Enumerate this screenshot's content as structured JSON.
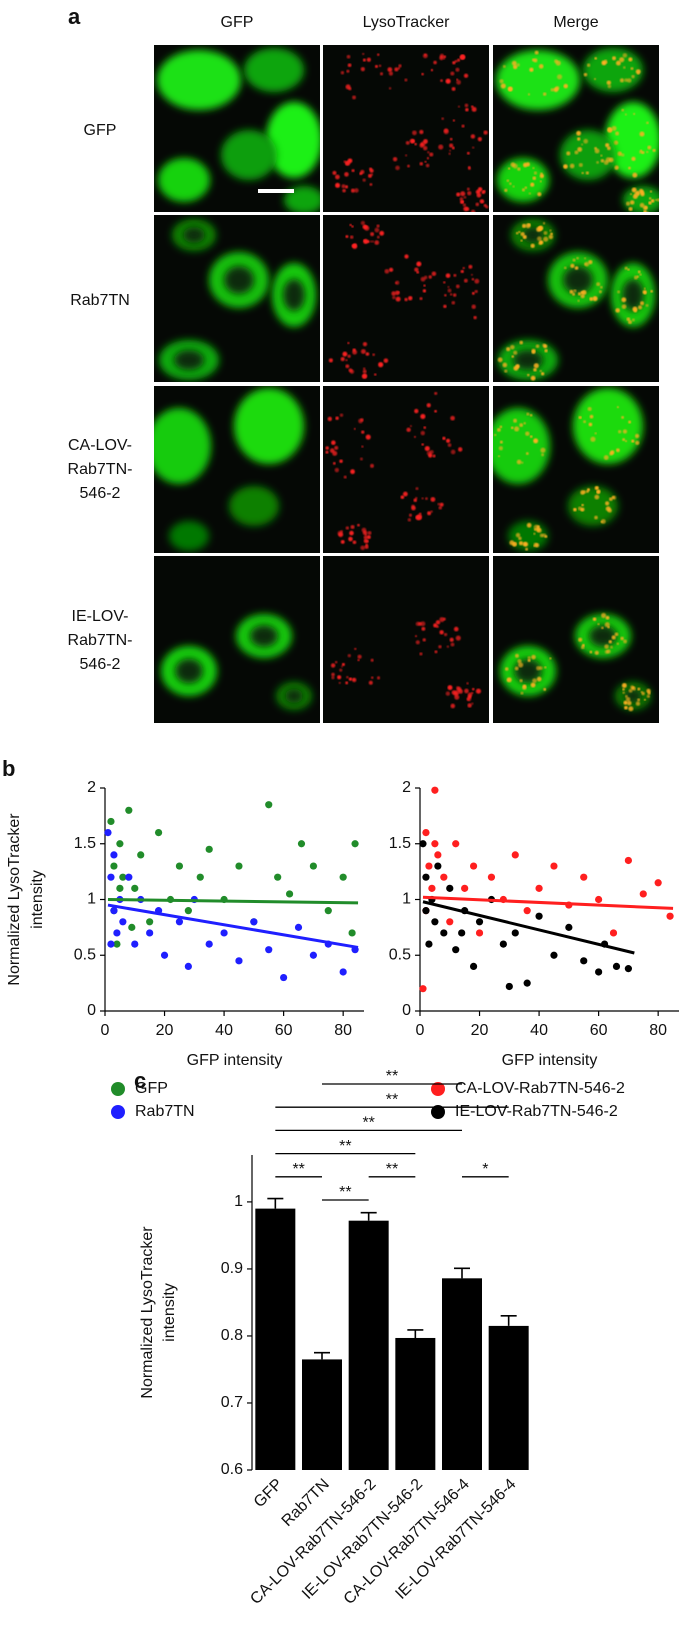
{
  "panel_labels": [
    "a",
    "b",
    "c"
  ],
  "panel_a": {
    "column_titles": [
      "GFP",
      "LysoTracker",
      "Merge"
    ],
    "row_labels": [
      [
        "GFP"
      ],
      [
        "Rab7TN"
      ],
      [
        "CA-LOV-",
        "Rab7TN-",
        "546-2"
      ],
      [
        "IE-LOV-",
        "Rab7TN-",
        "546-2"
      ]
    ]
  },
  "chart_data": [
    {
      "type": "scatter",
      "xlabel": "GFP intensity",
      "ylabel": [
        "Normalized LysoTracker",
        "intensity"
      ],
      "xlim": [
        0,
        87
      ],
      "xticks": [
        0,
        20,
        40,
        60,
        80
      ],
      "ylim": [
        0,
        2
      ],
      "yticks": [
        0,
        0.5,
        1,
        1.5,
        2
      ],
      "series": [
        {
          "name": "GFP",
          "color": "#218c2a",
          "x": [
            2,
            3,
            4,
            5,
            6,
            8,
            10,
            12,
            15,
            18,
            22,
            25,
            28,
            32,
            35,
            40,
            45,
            50,
            55,
            58,
            62,
            66,
            70,
            75,
            80,
            84,
            83,
            3,
            5,
            9
          ],
          "y": [
            1.7,
            1.3,
            0.6,
            1.5,
            1.2,
            1.8,
            1.1,
            1.4,
            0.8,
            1.6,
            1.0,
            1.3,
            0.9,
            1.2,
            1.45,
            1.0,
            1.3,
            0.8,
            1.85,
            1.2,
            1.05,
            1.5,
            1.3,
            0.9,
            1.2,
            1.5,
            0.7,
            0.9,
            1.1,
            0.75
          ],
          "trend": {
            "x": [
              1,
              85
            ],
            "y": [
              1.0,
              0.97
            ]
          }
        },
        {
          "name": "Rab7TN",
          "color": "#1f1fff",
          "x": [
            1,
            2,
            2,
            3,
            3,
            4,
            5,
            6,
            8,
            10,
            12,
            15,
            18,
            20,
            25,
            28,
            30,
            35,
            40,
            45,
            50,
            55,
            60,
            65,
            70,
            75,
            80,
            84
          ],
          "y": [
            1.6,
            1.2,
            0.6,
            0.9,
            1.4,
            0.7,
            1.0,
            0.8,
            1.2,
            0.6,
            1.0,
            0.7,
            0.9,
            0.5,
            0.8,
            0.4,
            1.0,
            0.6,
            0.7,
            0.45,
            0.8,
            0.55,
            0.3,
            0.75,
            0.5,
            0.6,
            0.35,
            0.55
          ],
          "trend": {
            "x": [
              1,
              85
            ],
            "y": [
              0.95,
              0.57
            ]
          }
        }
      ]
    },
    {
      "type": "scatter",
      "xlabel": "GFP intensity",
      "xlim": [
        0,
        87
      ],
      "xticks": [
        0,
        20,
        40,
        60,
        80
      ],
      "ylim": [
        0,
        2
      ],
      "yticks": [
        0,
        0.5,
        1,
        1.5,
        2
      ],
      "series": [
        {
          "name": "CA-LOV-Rab7TN-546-2",
          "color": "#ff1f1f",
          "x": [
            1,
            2,
            2,
            3,
            4,
            5,
            6,
            8,
            10,
            12,
            15,
            18,
            20,
            24,
            28,
            32,
            36,
            40,
            45,
            50,
            55,
            60,
            65,
            70,
            75,
            80,
            84,
            5
          ],
          "y": [
            0.2,
            1.6,
            0.9,
            1.3,
            1.1,
            1.98,
            1.4,
            1.2,
            0.8,
            1.5,
            1.1,
            1.3,
            0.7,
            1.2,
            1.0,
            1.4,
            0.9,
            1.1,
            1.3,
            0.95,
            1.2,
            1.0,
            0.7,
            1.35,
            1.05,
            1.15,
            0.85,
            1.5
          ],
          "trend": {
            "x": [
              1,
              85
            ],
            "y": [
              1.02,
              0.92
            ]
          }
        },
        {
          "name": "IE-LOV-Rab7TN-546-2",
          "color": "#000000",
          "x": [
            1,
            2,
            2,
            3,
            4,
            5,
            6,
            8,
            10,
            12,
            15,
            18,
            20,
            24,
            28,
            32,
            36,
            40,
            45,
            50,
            55,
            60,
            62,
            66,
            70,
            14,
            30
          ],
          "y": [
            1.5,
            0.9,
            1.2,
            0.6,
            1.0,
            0.8,
            1.3,
            0.7,
            1.1,
            0.55,
            0.9,
            0.4,
            0.8,
            1.0,
            0.6,
            0.7,
            0.25,
            0.85,
            0.5,
            0.75,
            0.45,
            0.35,
            0.6,
            0.4,
            0.38,
            0.7,
            0.22
          ],
          "trend": {
            "x": [
              1,
              72
            ],
            "y": [
              0.98,
              0.52
            ]
          }
        }
      ]
    },
    {
      "type": "bar",
      "ylabel": [
        "Normalized LysoTracker",
        "intensity"
      ],
      "categories": [
        "GFP",
        "Rab7TN",
        "CA-LOV-Rab7TN-546-2",
        "IE-LOV-Rab7TN-546-2",
        "CA-LOV-Rab7TN-546-4",
        "IE-LOV-Rab7TN-546-4"
      ],
      "values": [
        0.99,
        0.765,
        0.972,
        0.797,
        0.886,
        0.815
      ],
      "errors": [
        0.015,
        0.01,
        0.012,
        0.012,
        0.015,
        0.015
      ],
      "color": "#000000",
      "ylim": [
        0.6,
        1.07
      ],
      "yticks": [
        0.6,
        0.7,
        0.8,
        0.9,
        1
      ],
      "significance": [
        {
          "from": 1,
          "to": 4,
          "label": "**"
        },
        {
          "from": 0,
          "to": 5,
          "label": "**"
        },
        {
          "from": 0,
          "to": 4,
          "label": "**"
        },
        {
          "from": 0,
          "to": 3,
          "label": "**"
        },
        {
          "from": 0,
          "to": 1,
          "label": "**"
        },
        {
          "from": 2,
          "to": 3,
          "label": "**"
        },
        {
          "from": 4,
          "to": 5,
          "label": "*"
        },
        {
          "from": 1,
          "to": 2,
          "label": "**"
        }
      ]
    }
  ]
}
